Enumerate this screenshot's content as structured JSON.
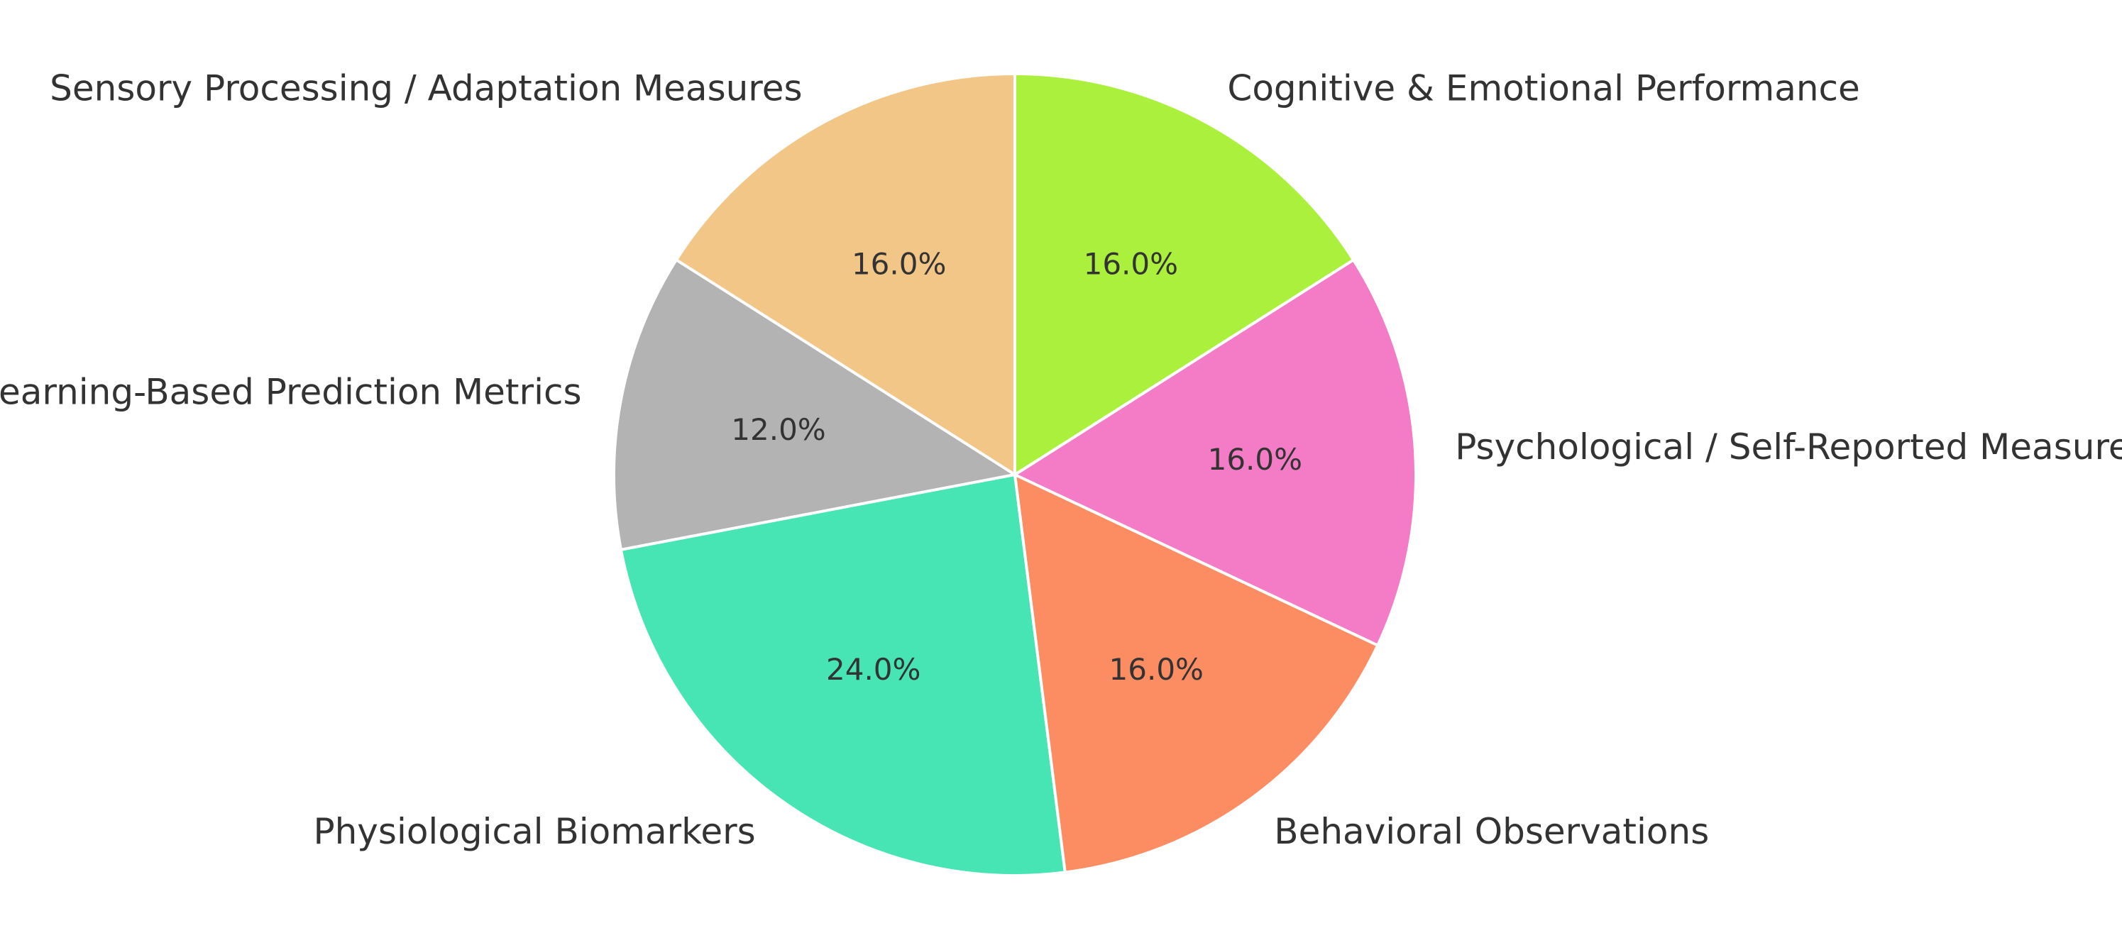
{
  "chart_data": {
    "type": "pie",
    "title": "",
    "start_angle_deg": 90,
    "direction": "counterclockwise",
    "slices": [
      {
        "label": "Sensory Processing / Adaptation Measures",
        "value": 16.0,
        "pct_text": "16.0%",
        "color": "#F2C686"
      },
      {
        "label": "Machine Learning-Based Prediction Metrics",
        "value": 12.0,
        "pct_text": "12.0%",
        "color": "#B3B3B3"
      },
      {
        "label": "Physiological Biomarkers",
        "value": 24.0,
        "pct_text": "24.0%",
        "color": "#47E5B3"
      },
      {
        "label": "Behavioral Observations",
        "value": 16.0,
        "pct_text": "16.0%",
        "color": "#FC8D62"
      },
      {
        "label": "Psychological / Self-Reported Measures",
        "value": 16.0,
        "pct_text": "16.0%",
        "color": "#F47CC6"
      },
      {
        "label": "Cognitive & Emotional Performance",
        "value": 16.0,
        "pct_text": "16.0%",
        "color": "#ABF03C"
      }
    ]
  }
}
